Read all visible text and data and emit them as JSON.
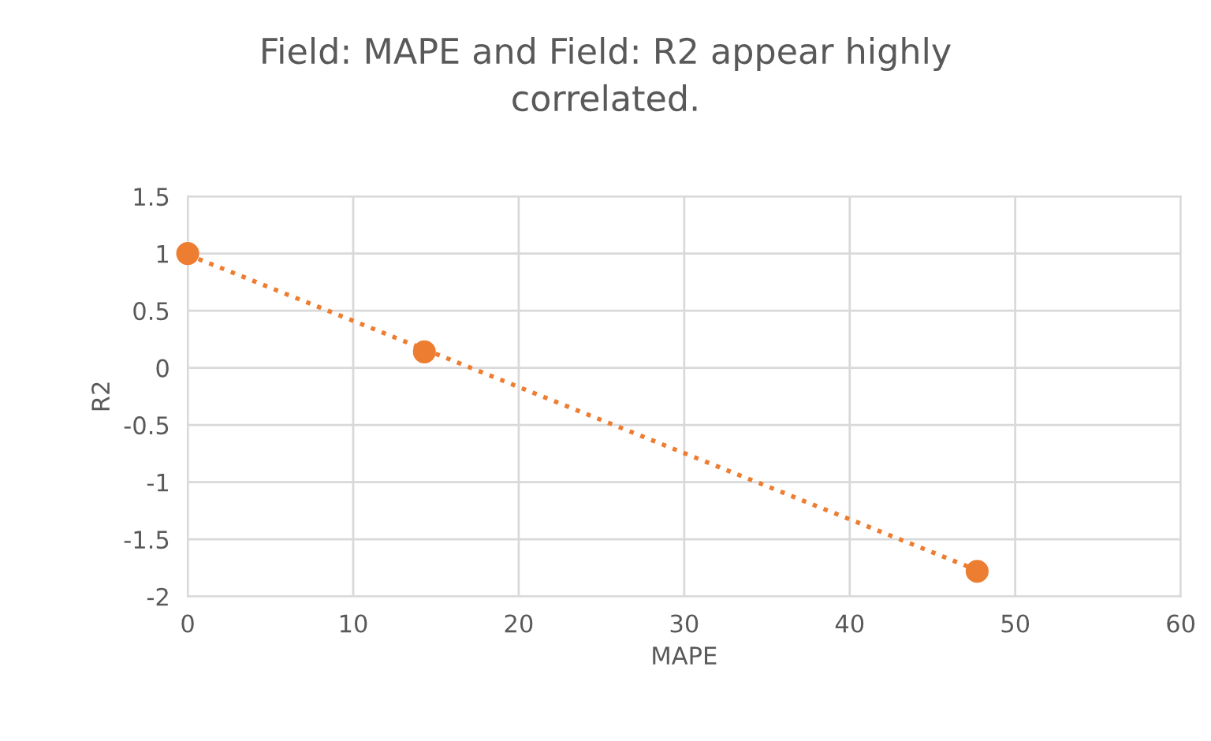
{
  "chart_data": {
    "type": "scatter",
    "title": "Field: MAPE and Field: R2 appear highly correlated.",
    "xlabel": "MAPE",
    "ylabel": "R2",
    "series": [
      {
        "color": "#ed7d31",
        "x": [
          0,
          14.3,
          47.7
        ],
        "values": [
          1,
          0.14,
          -1.78
        ],
        "marker": "circle"
      },
      {
        "type": "line",
        "color": "#ed7d31",
        "x": [
          0,
          47.7
        ],
        "values": [
          0.99,
          -1.77
        ],
        "line_style": "dotted"
      }
    ],
    "xlim": [
      0,
      60
    ],
    "xticks": [
      0,
      10,
      20,
      30,
      40,
      50,
      60
    ],
    "ylim": [
      -2,
      1.5
    ],
    "yticks": [
      -2,
      -1.5,
      -1,
      -0.5,
      0,
      0.5,
      1,
      1.5
    ],
    "grid": true,
    "legend": false
  }
}
